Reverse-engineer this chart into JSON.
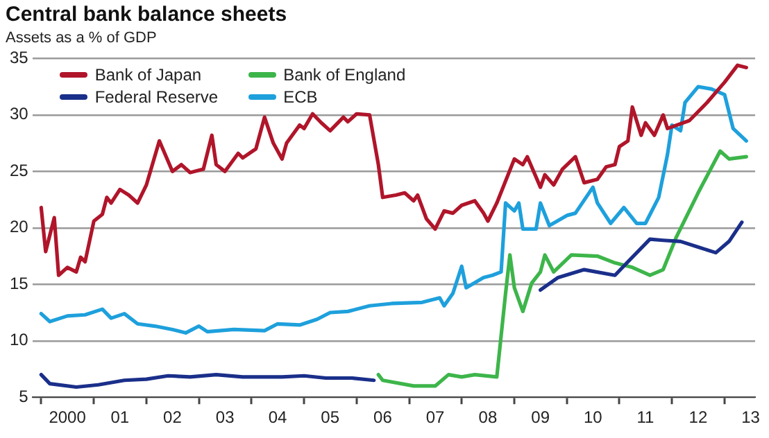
{
  "chart_data": {
    "type": "line",
    "title": "Central bank balance sheets",
    "subtitle": "Assets as a % of GDP",
    "xlim": [
      "1999-11",
      "2013-08"
    ],
    "ylim": [
      5,
      35
    ],
    "yticks": [
      5,
      10,
      15,
      20,
      25,
      30,
      35
    ],
    "xticks": [
      {
        "value": "2000",
        "label": null
      },
      {
        "value": "2000-07",
        "label": "2000"
      },
      {
        "value": "2001",
        "label": null
      },
      {
        "value": "2001-07",
        "label": "01"
      },
      {
        "value": "2002",
        "label": null
      },
      {
        "value": "2002-07",
        "label": "02"
      },
      {
        "value": "2003",
        "label": null
      },
      {
        "value": "2003-07",
        "label": "03"
      },
      {
        "value": "2004",
        "label": null
      },
      {
        "value": "2004-07",
        "label": "04"
      },
      {
        "value": "2005",
        "label": null
      },
      {
        "value": "2005-07",
        "label": "05"
      },
      {
        "value": "2006",
        "label": null
      },
      {
        "value": "2006-07",
        "label": "06"
      },
      {
        "value": "2007",
        "label": null
      },
      {
        "value": "2007-07",
        "label": "07"
      },
      {
        "value": "2008",
        "label": null
      },
      {
        "value": "2008-07",
        "label": "08"
      },
      {
        "value": "2009",
        "label": null
      },
      {
        "value": "2009-07",
        "label": "09"
      },
      {
        "value": "2010",
        "label": null
      },
      {
        "value": "2010-07",
        "label": "10"
      },
      {
        "value": "2011",
        "label": null
      },
      {
        "value": "2011-07",
        "label": "11"
      },
      {
        "value": "2012",
        "label": null
      },
      {
        "value": "2012-07",
        "label": "12"
      },
      {
        "value": "2013",
        "label": null
      },
      {
        "value": "2013-07",
        "label": "13"
      }
    ],
    "grid": "y",
    "legend": "top left",
    "marker": "none",
    "line_style": "solid",
    "series": [
      {
        "name": "Bank of Japan",
        "color": "#b0152a",
        "x": [
          "2000-01",
          "2000-02",
          "2000-04",
          "2000-05",
          "2000-07",
          "2000-09",
          "2000-10",
          "2000-11",
          "2001-01",
          "2001-03",
          "2001-04",
          "2001-05",
          "2001-07",
          "2001-09",
          "2001-11",
          "2002-01",
          "2002-04",
          "2002-07",
          "2002-09",
          "2002-11",
          "2003-02",
          "2003-04",
          "2003-05",
          "2003-07",
          "2003-10",
          "2003-11",
          "2004-02",
          "2004-04",
          "2004-06",
          "2004-08",
          "2004-09",
          "2004-12",
          "2005-01",
          "2005-03",
          "2005-05",
          "2005-07",
          "2005-10",
          "2005-11",
          "2006-01",
          "2006-04",
          "2006-06",
          "2006-07",
          "2006-10",
          "2006-12",
          "2007-02",
          "2007-03",
          "2007-05",
          "2007-07",
          "2007-09",
          "2007-11",
          "2008-01",
          "2008-04",
          "2008-06",
          "2008-07",
          "2008-09",
          "2009-01",
          "2009-03",
          "2009-04",
          "2009-07",
          "2009-08",
          "2009-10",
          "2009-12",
          "2010-03",
          "2010-05",
          "2010-08",
          "2010-10",
          "2010-12",
          "2011-01",
          "2011-03",
          "2011-04",
          "2011-06",
          "2011-07",
          "2011-09",
          "2011-11",
          "2011-12",
          "2012-05",
          "2012-09",
          "2013-01",
          "2013-04",
          "2013-06"
        ],
        "values": [
          21.8,
          17.9,
          20.9,
          15.8,
          16.5,
          16.1,
          17.4,
          17.0,
          20.6,
          21.2,
          22.7,
          22.2,
          23.4,
          22.9,
          22.2,
          23.8,
          27.7,
          25.0,
          25.6,
          24.9,
          25.2,
          28.2,
          25.6,
          25.0,
          26.6,
          26.2,
          27.0,
          29.8,
          27.5,
          26.1,
          27.5,
          29.1,
          28.8,
          30.1,
          29.3,
          28.6,
          29.8,
          29.4,
          30.1,
          30.0,
          25.6,
          22.7,
          22.9,
          23.1,
          22.4,
          22.9,
          20.8,
          19.9,
          21.5,
          21.3,
          22.0,
          22.4,
          21.3,
          20.6,
          22.2,
          26.1,
          25.6,
          26.3,
          23.6,
          24.7,
          23.8,
          25.2,
          26.3,
          24.0,
          24.3,
          25.4,
          25.6,
          27.2,
          27.7,
          30.7,
          28.2,
          29.3,
          28.2,
          30.0,
          28.8,
          29.5,
          31.1,
          32.9,
          34.4,
          34.2
        ]
      },
      {
        "name": "Federal Reserve",
        "color": "#1a2f8a",
        "x": [
          "2000-01",
          "2000-03",
          "2000-09",
          "2001-02",
          "2001-08",
          "2002-01",
          "2002-06",
          "2002-11",
          "2003-05",
          "2003-11",
          "2004-08",
          "2005-01",
          "2005-06",
          "2005-12",
          "2006-05",
          "2007-12",
          "2009-07",
          "2009-11",
          "2010-05",
          "2010-12",
          "2011-03",
          "2011-08",
          "2011-11",
          "2012-03",
          "2012-07",
          "2012-11",
          "2013-02",
          "2013-05"
        ],
        "values": [
          7.0,
          6.2,
          5.9,
          6.1,
          6.5,
          6.6,
          6.9,
          6.8,
          7.0,
          6.8,
          6.8,
          6.9,
          6.7,
          6.7,
          6.5,
          null,
          14.5,
          15.6,
          16.3,
          15.8,
          17.0,
          19.0,
          18.9,
          18.8,
          18.3,
          17.8,
          18.8,
          20.5
        ]
      },
      {
        "name": "Bank of England",
        "color": "#3db54a",
        "x": [
          "2006-06",
          "2006-07",
          "2007-02",
          "2007-07",
          "2007-10",
          "2008-01",
          "2008-04",
          "2008-09",
          "2008-11",
          "2008-12",
          "2009-01",
          "2009-03",
          "2009-05",
          "2009-07",
          "2009-08",
          "2009-10",
          "2010-02",
          "2010-08",
          "2010-12",
          "2011-04",
          "2011-08",
          "2011-11",
          "2012-02",
          "2012-07",
          "2012-12",
          "2013-02",
          "2013-06"
        ],
        "values": [
          7.0,
          6.5,
          6.0,
          6.0,
          7.0,
          6.8,
          7.0,
          6.8,
          14.2,
          17.6,
          14.7,
          12.6,
          15.1,
          16.1,
          17.6,
          16.1,
          17.6,
          17.5,
          16.9,
          16.5,
          15.8,
          16.3,
          19.2,
          23.1,
          26.8,
          26.1,
          26.3
        ]
      },
      {
        "name": "ECB",
        "color": "#1ea0dc",
        "x": [
          "2000-01",
          "2000-03",
          "2000-07",
          "2000-11",
          "2001-03",
          "2001-05",
          "2001-08",
          "2001-11",
          "2002-03",
          "2002-07",
          "2002-10",
          "2003-01",
          "2003-03",
          "2003-09",
          "2004-04",
          "2004-07",
          "2004-12",
          "2005-04",
          "2005-07",
          "2005-11",
          "2006-04",
          "2006-09",
          "2007-04",
          "2007-08",
          "2007-09",
          "2007-11",
          "2008-01",
          "2008-02",
          "2008-06",
          "2008-08",
          "2008-10",
          "2008-11",
          "2009-01",
          "2009-02",
          "2009-03",
          "2009-06",
          "2009-07",
          "2009-09",
          "2010-01",
          "2010-03",
          "2010-07",
          "2010-08",
          "2010-11",
          "2011-02",
          "2011-05",
          "2011-07",
          "2011-10",
          "2011-12",
          "2012-01",
          "2012-03",
          "2012-04",
          "2012-07",
          "2012-10",
          "2013-01",
          "2013-03",
          "2013-06"
        ],
        "values": [
          12.4,
          11.7,
          12.2,
          12.3,
          12.8,
          12.0,
          12.4,
          11.5,
          11.3,
          11.0,
          10.7,
          11.3,
          10.8,
          11.0,
          10.9,
          11.5,
          11.4,
          11.9,
          12.5,
          12.6,
          13.1,
          13.3,
          13.4,
          13.8,
          13.1,
          14.2,
          16.6,
          14.7,
          15.6,
          15.8,
          16.1,
          22.2,
          21.5,
          22.2,
          19.9,
          19.9,
          22.2,
          20.2,
          21.1,
          21.3,
          23.6,
          22.2,
          20.4,
          21.8,
          20.4,
          20.4,
          22.7,
          26.5,
          29.1,
          28.6,
          31.1,
          32.5,
          32.3,
          31.8,
          28.8,
          27.7
        ]
      }
    ]
  }
}
